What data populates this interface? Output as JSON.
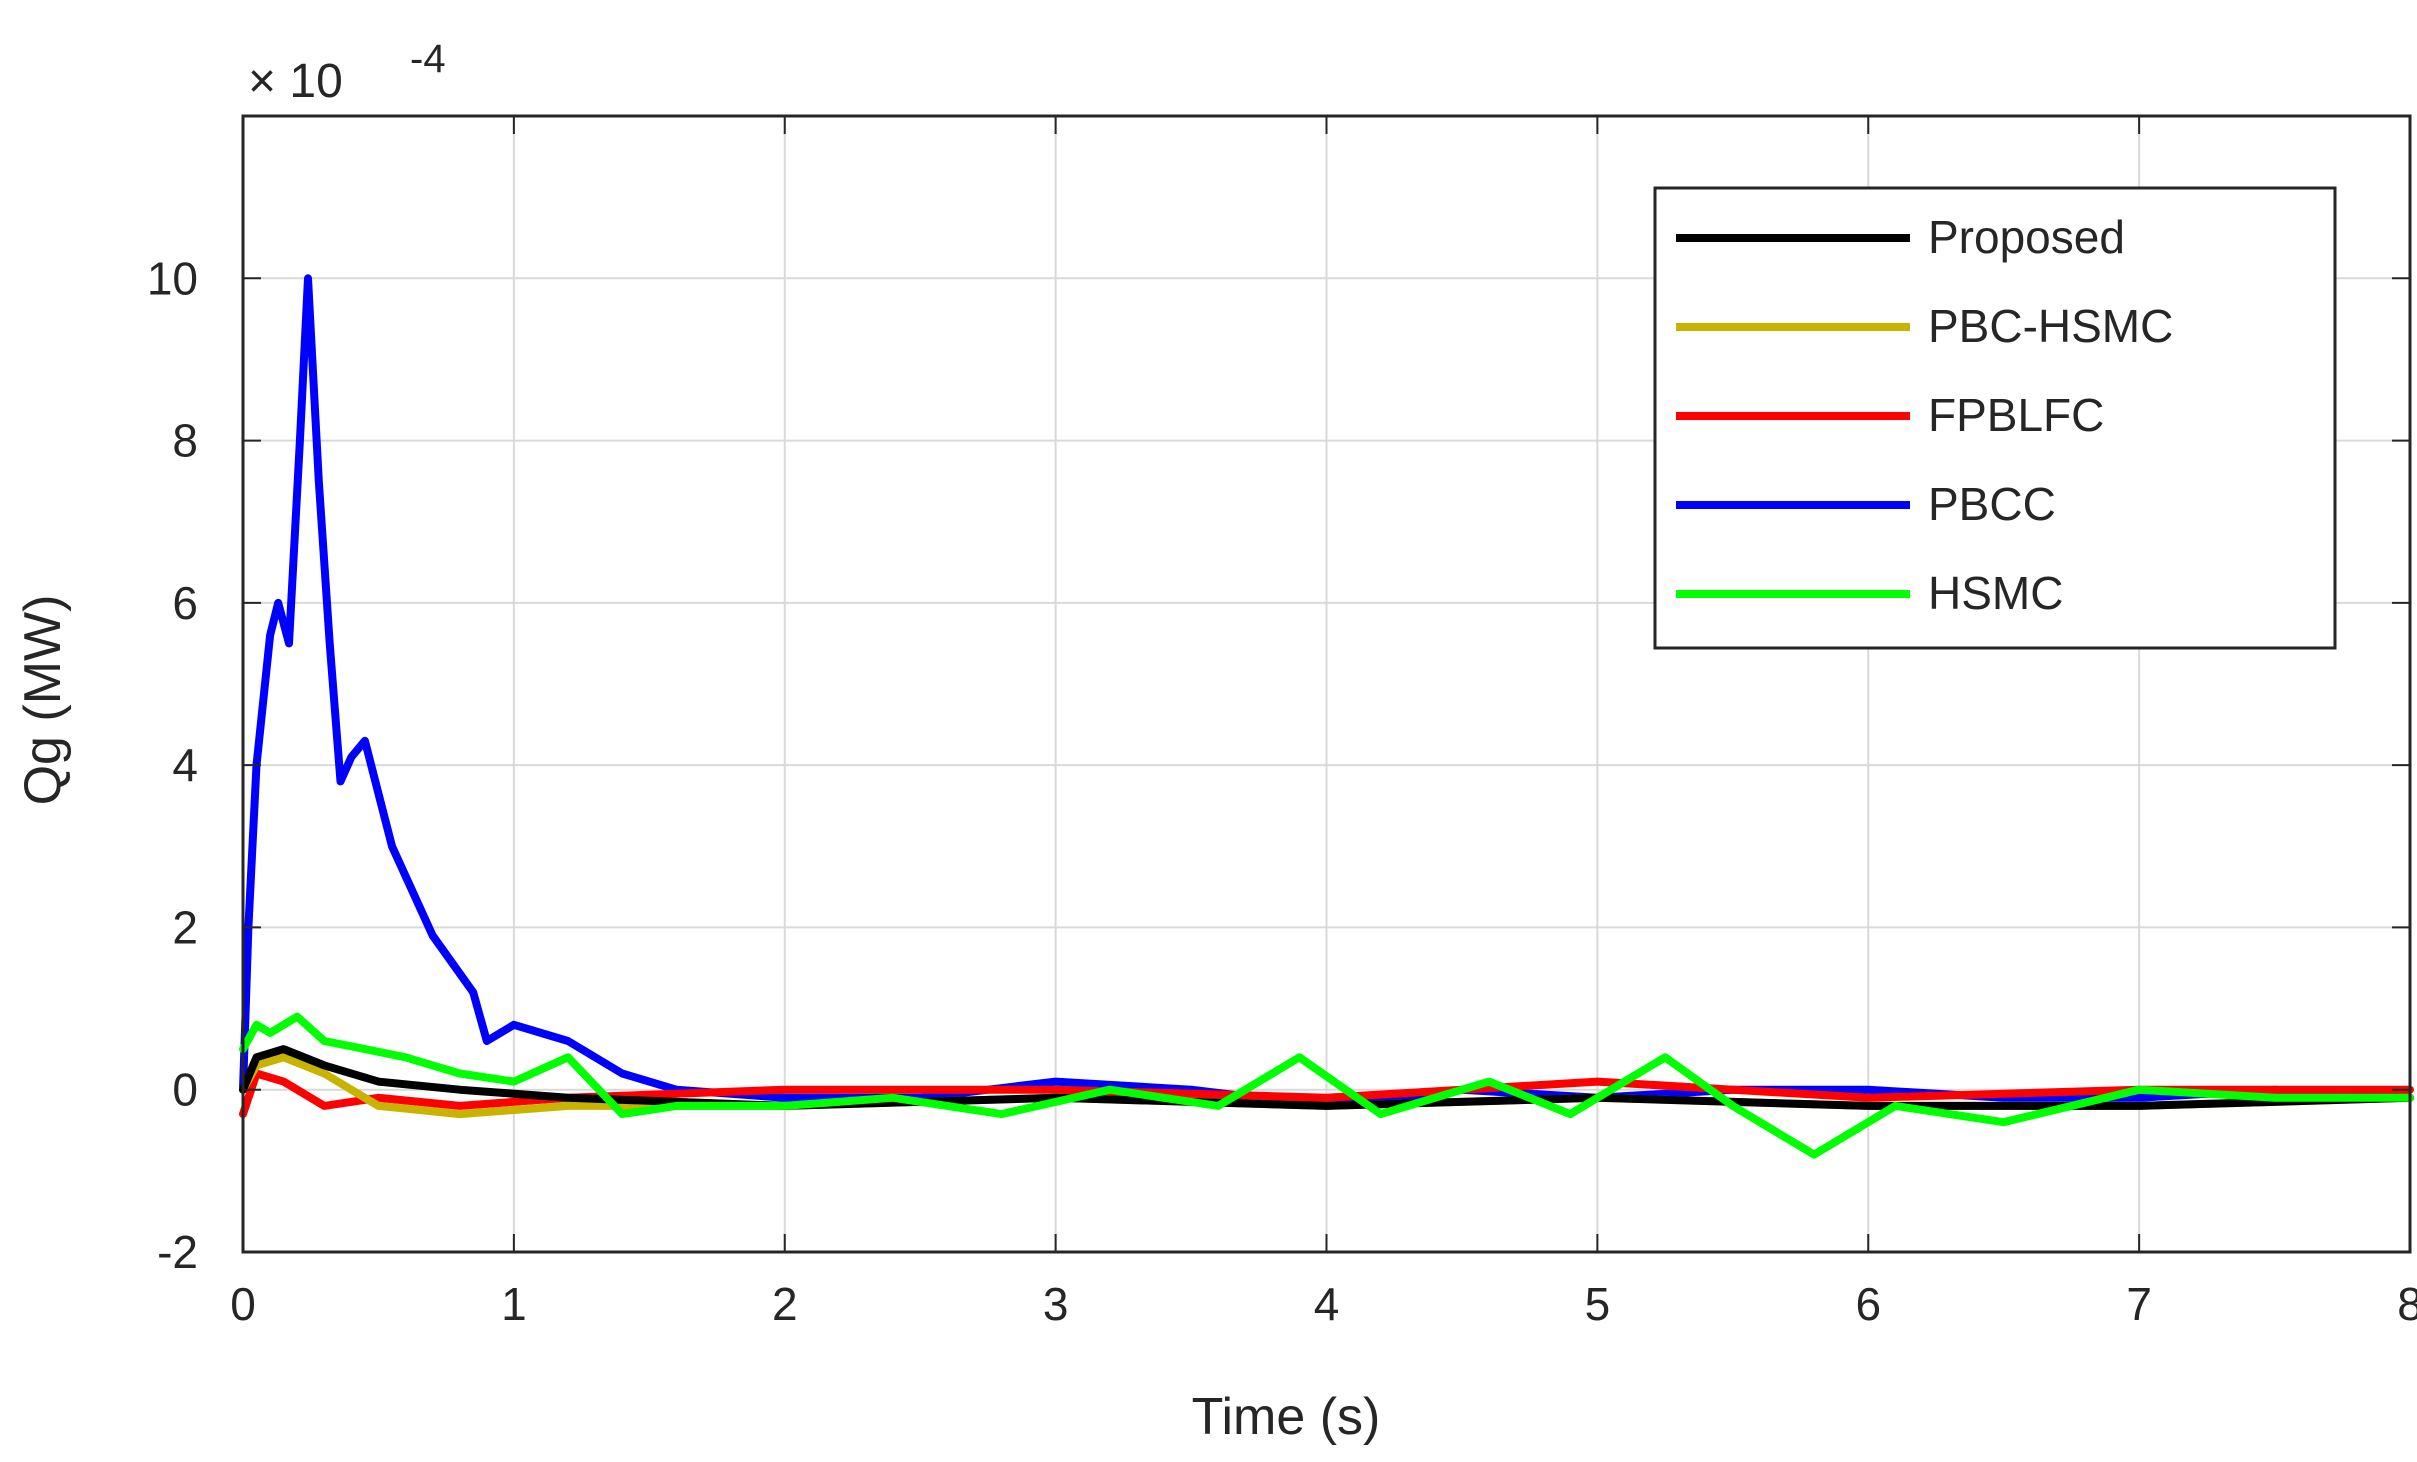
{
  "chart_data": {
    "type": "line",
    "title": "",
    "xlabel": "Time (s)",
    "ylabel": "Qg (MW)",
    "exponent_label": "× 10",
    "exponent_power": "-4",
    "xlim": [
      0,
      8
    ],
    "ylim": [
      -2,
      12
    ],
    "xticks": [
      0,
      1,
      2,
      3,
      4,
      5,
      6,
      7,
      8
    ],
    "yticks": [
      -2,
      0,
      2,
      4,
      6,
      8,
      10
    ],
    "xtick_labels": [
      "0",
      "1",
      "2",
      "3",
      "4",
      "5",
      "6",
      "7",
      "8"
    ],
    "ytick_labels": [
      "-2",
      "0",
      "2",
      "4",
      "6",
      "8",
      "10"
    ],
    "grid": true,
    "legend_position": "top-right",
    "series": [
      {
        "name": "Proposed",
        "color": "#000000",
        "x": [
          0,
          0.05,
          0.15,
          0.3,
          0.5,
          0.8,
          1.2,
          2,
          3,
          4,
          5,
          6,
          7,
          8
        ],
        "y": [
          0,
          0.4,
          0.5,
          0.3,
          0.1,
          0.0,
          -0.1,
          -0.2,
          -0.1,
          -0.2,
          -0.1,
          -0.2,
          -0.2,
          -0.1
        ]
      },
      {
        "name": "PBC-HSMC",
        "color": "#c8b400",
        "x": [
          0,
          0.05,
          0.15,
          0.3,
          0.5,
          0.8,
          1.2,
          2,
          3,
          4,
          5,
          6,
          7,
          8
        ],
        "y": [
          0,
          0.3,
          0.4,
          0.2,
          -0.2,
          -0.3,
          -0.2,
          -0.2,
          -0.1,
          -0.2,
          -0.1,
          -0.2,
          -0.2,
          -0.1
        ]
      },
      {
        "name": "FPBLFC",
        "color": "#ff0000",
        "x": [
          0,
          0.05,
          0.15,
          0.3,
          0.5,
          0.8,
          1.2,
          2,
          3,
          4,
          5,
          6,
          7,
          8
        ],
        "y": [
          -0.3,
          0.2,
          0.1,
          -0.2,
          -0.1,
          -0.2,
          -0.1,
          0.0,
          0.0,
          -0.1,
          0.1,
          -0.1,
          0.0,
          0.0
        ]
      },
      {
        "name": "PBCC",
        "color": "#0000ff",
        "x": [
          0,
          0.02,
          0.05,
          0.1,
          0.13,
          0.17,
          0.21,
          0.24,
          0.28,
          0.32,
          0.36,
          0.4,
          0.45,
          0.55,
          0.7,
          0.85,
          0.9,
          1.0,
          1.2,
          1.4,
          1.6,
          2,
          2.5,
          3,
          3.5,
          4,
          4.5,
          5,
          5.5,
          6,
          6.5,
          7,
          7.5,
          8
        ],
        "y": [
          0,
          2.0,
          4.0,
          5.6,
          6.0,
          5.5,
          8.0,
          10.0,
          7.5,
          5.5,
          3.8,
          4.1,
          4.3,
          3.0,
          1.9,
          1.2,
          0.6,
          0.8,
          0.6,
          0.2,
          0.0,
          -0.1,
          -0.1,
          0.1,
          0.0,
          -0.2,
          0.0,
          -0.1,
          0.0,
          0.0,
          -0.1,
          -0.1,
          0.0,
          -0.1
        ]
      },
      {
        "name": "HSMC",
        "color": "#00ff00",
        "x": [
          0,
          0.05,
          0.1,
          0.2,
          0.3,
          0.45,
          0.6,
          0.8,
          1.0,
          1.2,
          1.4,
          1.6,
          2,
          2.4,
          2.8,
          3.2,
          3.6,
          3.9,
          4.2,
          4.6,
          4.9,
          5.25,
          5.5,
          5.8,
          6.1,
          6.5,
          7,
          7.5,
          8
        ],
        "y": [
          0.5,
          0.8,
          0.7,
          0.9,
          0.6,
          0.5,
          0.4,
          0.2,
          0.1,
          0.4,
          -0.3,
          -0.2,
          -0.2,
          -0.1,
          -0.3,
          0.0,
          -0.2,
          0.4,
          -0.3,
          0.1,
          -0.3,
          0.4,
          -0.2,
          -0.8,
          -0.2,
          -0.4,
          0.0,
          -0.1,
          -0.1
        ]
      }
    ]
  }
}
